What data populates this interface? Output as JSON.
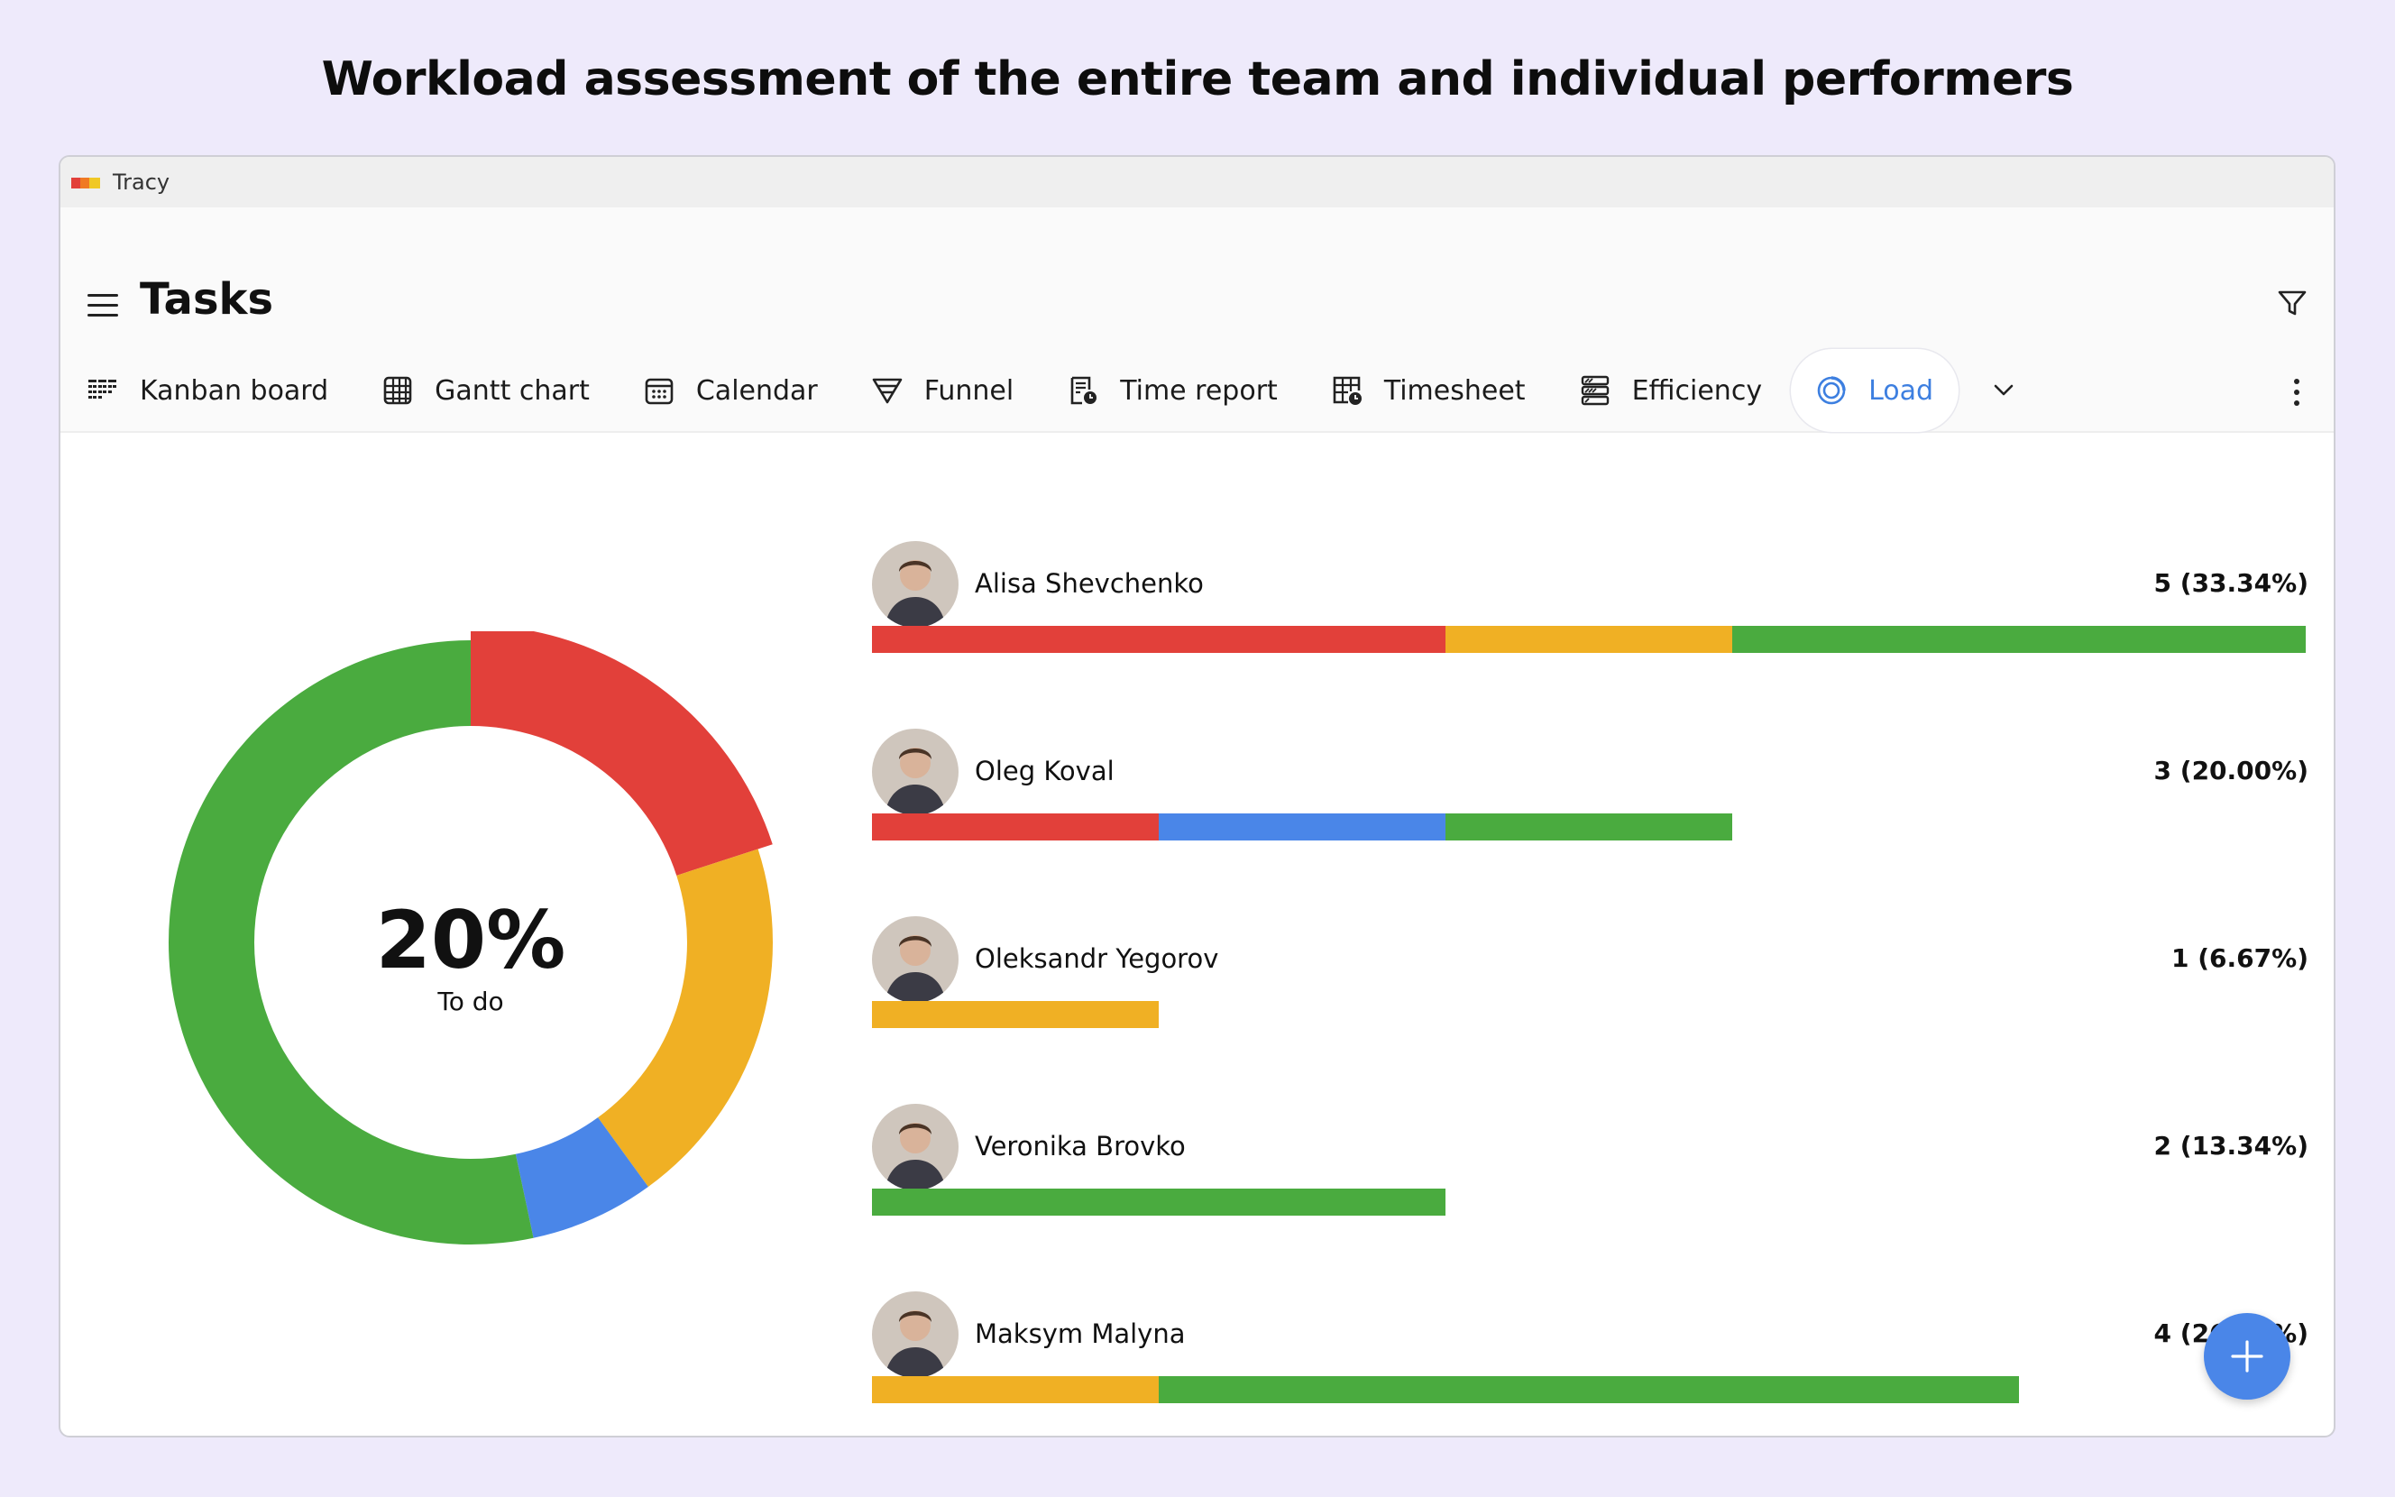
{
  "headline": "Workload assessment of the entire team and individual performers",
  "window": {
    "app_name": "Tracy"
  },
  "header": {
    "title": "Tasks"
  },
  "tabs": [
    {
      "label": "Kanban board",
      "icon": "kanban-icon"
    },
    {
      "label": "Gantt chart",
      "icon": "gantt-icon"
    },
    {
      "label": "Calendar",
      "icon": "calendar-icon"
    },
    {
      "label": "Funnel",
      "icon": "funnel-icon"
    },
    {
      "label": "Time report",
      "icon": "time-report-icon"
    },
    {
      "label": "Timesheet",
      "icon": "timesheet-icon"
    },
    {
      "label": "Efficiency",
      "icon": "efficiency-icon"
    },
    {
      "label": "Load",
      "icon": "load-icon",
      "active": true
    }
  ],
  "colors": {
    "red": "#e2403a",
    "yellow": "#f0b024",
    "blue": "#4a86e8",
    "green": "#4aab3f",
    "accent": "#3d7fe0",
    "background": "#eeeafb"
  },
  "chart_data": [
    {
      "type": "pie",
      "variant": "donut",
      "center_value": "20%",
      "center_label": "To do",
      "slices": [
        {
          "color": "#e2403a",
          "value": 20.0
        },
        {
          "color": "#f0b024",
          "value": 20.0
        },
        {
          "color": "#4a86e8",
          "value": 6.67
        },
        {
          "color": "#4aab3f",
          "value": 53.33
        }
      ],
      "highlighted_slice": 0
    },
    {
      "type": "bar",
      "orientation": "horizontal",
      "stacked": true,
      "unit_scale": "1 segment = 1 task",
      "categories": [
        "Alisa Shevchenko",
        "Oleg Koval",
        "Oleksandr Yegorov",
        "Veronika Brovko",
        "Maksym Malyna"
      ],
      "totals": [
        5,
        3,
        1,
        2,
        4
      ],
      "total_labels": [
        "5 (33.34%)",
        "3 (20.00%)",
        "1 (6.67%)",
        "2 (13.34%)",
        "4 (26.67%)"
      ],
      "series": [
        {
          "color": "#e2403a",
          "values": [
            2,
            1,
            0,
            0,
            0
          ]
        },
        {
          "color": "#f0b024",
          "values": [
            1,
            0,
            1,
            0,
            1
          ]
        },
        {
          "color": "#4a86e8",
          "values": [
            0,
            1,
            0,
            0,
            0
          ]
        },
        {
          "color": "#4aab3f",
          "values": [
            2,
            1,
            0,
            2,
            3
          ]
        }
      ],
      "xlim": [
        0,
        5
      ]
    }
  ],
  "people": [
    {
      "name": "Alisa Shevchenko",
      "count_label": "5 (33.34%)",
      "avatar": "avatar-photo"
    },
    {
      "name": "Oleg Koval",
      "count_label": "3 (20.00%)",
      "avatar": "avatar-photo"
    },
    {
      "name": "Oleksandr Yegorov",
      "count_label": "1 (6.67%)",
      "avatar": "avatar-photo"
    },
    {
      "name": "Veronika Brovko",
      "count_label": "2 (13.34%)",
      "avatar": "avatar-photo"
    },
    {
      "name": "Maksym Malyna",
      "count_label": "4 (26.67%)",
      "avatar": "avatar-photo"
    }
  ],
  "fab": {
    "icon": "plus-icon"
  }
}
